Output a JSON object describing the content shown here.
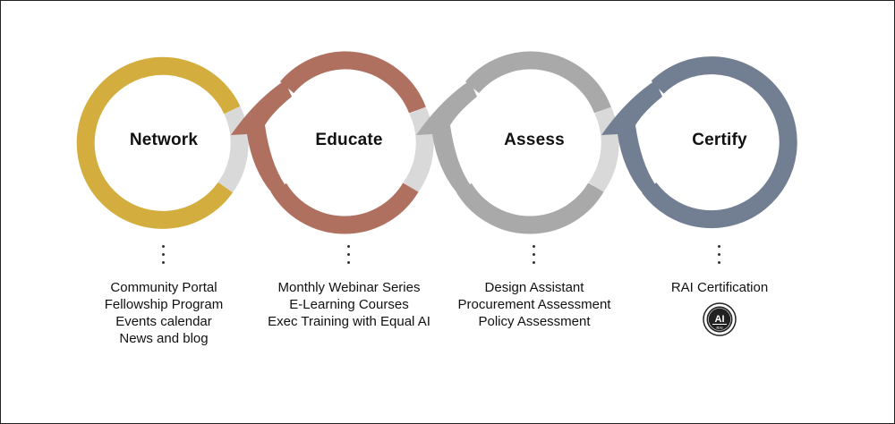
{
  "colors": {
    "network": "#d4ad3f",
    "educate": "#b07060",
    "assess": "#a9a9a9",
    "certify": "#727f92",
    "connector": "#d9d9d9"
  },
  "stages": [
    {
      "title": "Network",
      "items": [
        "Community Portal",
        "Fellowship Program",
        "Events calendar",
        "News and blog"
      ]
    },
    {
      "title": "Educate",
      "items": [
        "Monthly Webinar Series",
        "E-Learning Courses",
        "Exec Training with Equal AI"
      ]
    },
    {
      "title": "Assess",
      "items": [
        "Design Assistant",
        "Procurement Assessment",
        "Policy Assessment"
      ]
    },
    {
      "title": "Certify",
      "items": [
        "RAI Certification"
      ]
    }
  ],
  "badge": {
    "icon": "ai-certification-badge-icon",
    "lettering": "AI",
    "sub_lettering": "RAI"
  }
}
